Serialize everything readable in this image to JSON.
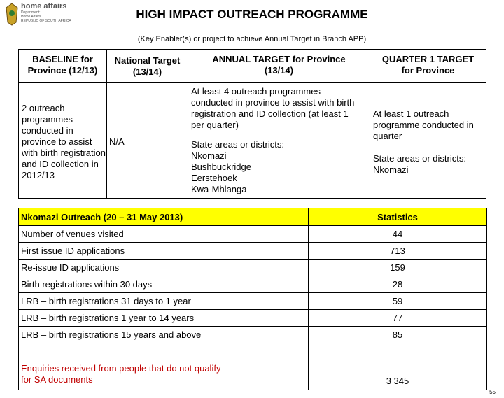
{
  "logo": {
    "brand": "home affairs",
    "lines": [
      "Department:",
      "Home Affairs",
      "REPUBLIC OF SOUTH AFRICA"
    ]
  },
  "header": {
    "title": "HIGH IMPACT OUTREACH PROGRAMME",
    "subtitle": "(Key Enabler(s) or project to achieve Annual Target in Branch APP)"
  },
  "targets_table": {
    "headers": [
      [
        "BASELINE for",
        "Province (12/13)"
      ],
      [
        "National Target",
        "(13/14)"
      ],
      [
        "ANNUAL TARGET for Province",
        "(13/14)"
      ],
      [
        "QUARTER 1 TARGET",
        "for Province"
      ]
    ],
    "row": [
      [
        [
          "2 outreach",
          "programmes",
          "conducted in",
          "province to assist",
          "with birth registration",
          "and ID collection in",
          "2012/13"
        ]
      ],
      [
        [
          "N/A"
        ]
      ],
      [
        [
          "At least 4 outreach programmes",
          "conducted in province to assist with birth",
          "registration and ID collection (at least 1",
          "per quarter)"
        ],
        [
          "State areas or districts:",
          "Nkomazi",
          "Bushbuckridge",
          "Eerstehoek",
          "Kwa-Mhlanga"
        ]
      ],
      [
        [
          "At least 1 outreach",
          "programme conducted in",
          "quarter"
        ],
        [
          "State areas or districts:",
          "Nkomazi"
        ]
      ]
    ]
  },
  "stats_table": {
    "headers": [
      "Nkomazi Outreach (20 – 31 May 2013)",
      "Statistics"
    ],
    "rows": [
      [
        [
          "Number of  venues visited"
        ],
        "44"
      ],
      [
        [
          "First issue ID applications"
        ],
        "713"
      ],
      [
        [
          "Re-issue ID applications"
        ],
        "159"
      ],
      [
        [
          "Birth registrations within 30 days"
        ],
        "28"
      ],
      [
        [
          "LRB – birth registrations 31 days to 1 year"
        ],
        "59"
      ],
      [
        [
          "LRB – birth registrations 1 year to 14 years"
        ],
        "77"
      ],
      [
        [
          "LRB – birth registrations 15 years and above"
        ],
        "85"
      ],
      [
        [
          "Enquiries received from people that do not qualify",
          "for SA documents"
        ],
        "3 345"
      ]
    ]
  },
  "page_number": "55"
}
